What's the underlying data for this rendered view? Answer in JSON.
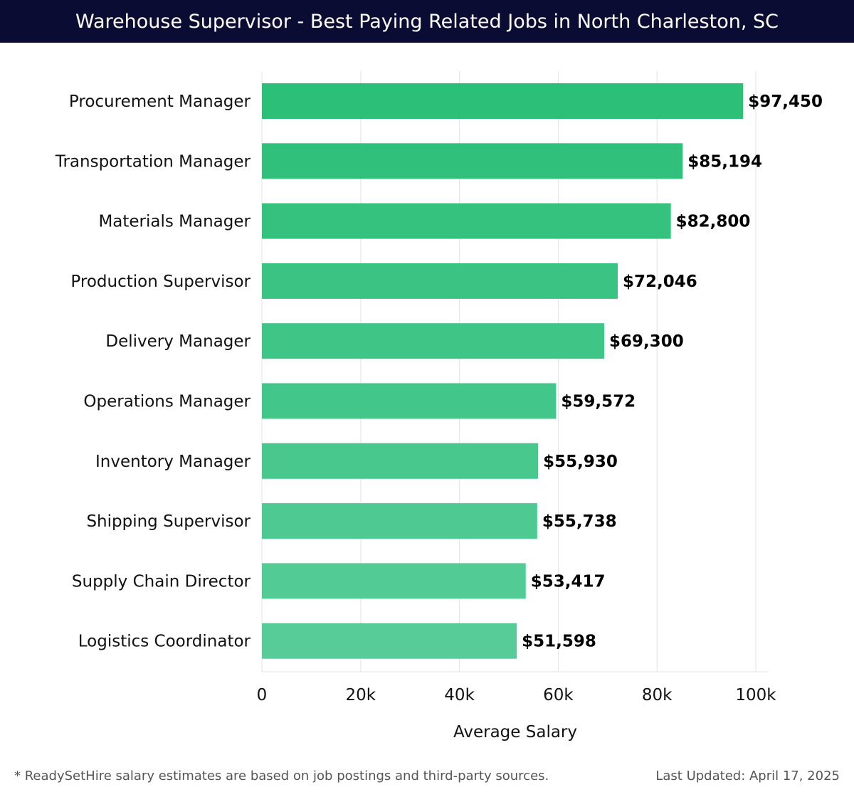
{
  "header": {
    "title": "Warehouse Supervisor - Best Paying Related Jobs in North Charleston, SC"
  },
  "colors": {
    "header_bg": "#0b0c33",
    "bar_top": "#2bbf77",
    "bar_bottom": "#57cc98",
    "grid": "#e3e3e3"
  },
  "chart_data": {
    "type": "bar",
    "orientation": "horizontal",
    "categories": [
      "Procurement Manager",
      "Transportation Manager",
      "Materials Manager",
      "Production Supervisor",
      "Delivery Manager",
      "Operations Manager",
      "Inventory Manager",
      "Shipping Supervisor",
      "Supply Chain Director",
      "Logistics Coordinator"
    ],
    "values": [
      97450,
      85194,
      82800,
      72046,
      69300,
      59572,
      55930,
      55738,
      53417,
      51598
    ],
    "value_labels": [
      "$97,450",
      "$85,194",
      "$82,800",
      "$72,046",
      "$69,300",
      "$59,572",
      "$55,930",
      "$55,738",
      "$53,417",
      "$51,598"
    ],
    "xlabel": "Average Salary",
    "ylabel": "",
    "xlim": [
      0,
      100000
    ],
    "xticks": [
      0,
      20000,
      40000,
      60000,
      80000,
      100000
    ],
    "xtick_labels": [
      "0",
      "20k",
      "40k",
      "60k",
      "80k",
      "100k"
    ],
    "grid": true
  },
  "footer": {
    "note": "* ReadySetHire salary estimates are based on job postings and third-party sources.",
    "updated": "Last Updated: April 17, 2025"
  }
}
